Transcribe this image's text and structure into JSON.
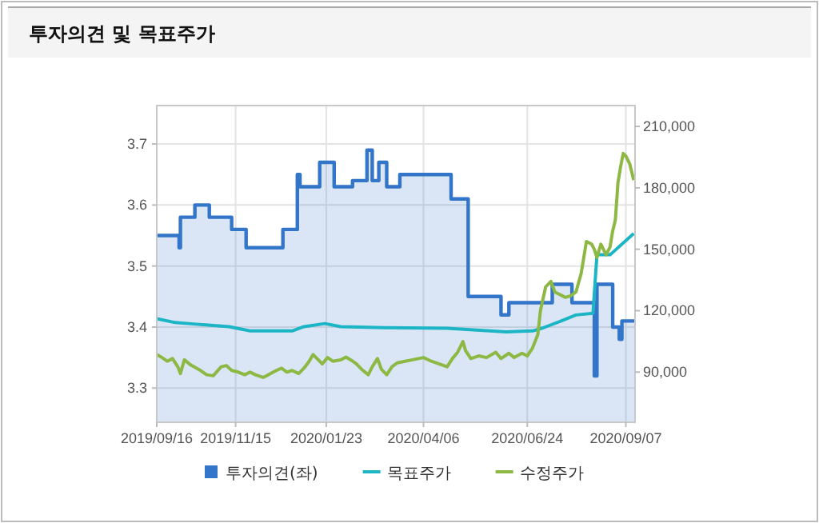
{
  "chart_data": {
    "type": "line",
    "title": "투자의견 및 목표주가",
    "xlim": [
      "2019-09-16",
      "2020-09-14"
    ],
    "xticks": [
      {
        "value": "2019-09-16",
        "label": "2019/09/16"
      },
      {
        "value": "2019-11-15",
        "label": "2019/11/15"
      },
      {
        "value": "2020-01-23",
        "label": "2020/01/23"
      },
      {
        "value": "2020-04-06",
        "label": "2020/04/06"
      },
      {
        "value": "2020-06-24",
        "label": "2020/06/24"
      },
      {
        "value": "2020-09-07",
        "label": "2020/09/07"
      }
    ],
    "ylim": [
      3.244,
      3.763
    ],
    "yticks": [
      3.3,
      3.4,
      3.5,
      3.6,
      3.7
    ],
    "y2lim": [
      65500,
      220200
    ],
    "y2ticks": [
      {
        "value": 90000,
        "label": "90,000"
      },
      {
        "value": 120000,
        "label": "120,000"
      },
      {
        "value": 150000,
        "label": "150,000"
      },
      {
        "value": 180000,
        "label": "180,000"
      },
      {
        "value": 210000,
        "label": "210,000"
      }
    ],
    "grid": true,
    "legend": "bottom",
    "series": [
      {
        "name": "투자의견(좌)",
        "type": "area",
        "line_style": "solid",
        "color": "#3375c8",
        "x": [
          "2019-09-16",
          "2019-10-03",
          "2019-10-03",
          "2019-10-04",
          "2019-10-04",
          "2019-10-15",
          "2019-10-15",
          "2019-10-26",
          "2019-10-26",
          "2019-11-12",
          "2019-11-12",
          "2019-11-23",
          "2019-11-23",
          "2019-12-21",
          "2019-12-21",
          "2020-01-01",
          "2020-01-01",
          "2020-01-03",
          "2020-01-03",
          "2020-01-18",
          "2020-01-18",
          "2020-01-29",
          "2020-01-29",
          "2020-02-12",
          "2020-02-12",
          "2020-02-23",
          "2020-02-23",
          "2020-02-27",
          "2020-02-27",
          "2020-03-03",
          "2020-03-03",
          "2020-03-09",
          "2020-03-09",
          "2020-03-19",
          "2020-03-19",
          "2020-04-27",
          "2020-04-27",
          "2020-05-10",
          "2020-05-10",
          "2020-06-04",
          "2020-06-04",
          "2020-06-10",
          "2020-06-10",
          "2020-07-13",
          "2020-07-13",
          "2020-07-28",
          "2020-07-28",
          "2020-08-14",
          "2020-08-14",
          "2020-08-16",
          "2020-08-16",
          "2020-08-28",
          "2020-08-28",
          "2020-09-02",
          "2020-09-02",
          "2020-09-04",
          "2020-09-04",
          "2020-09-14"
        ],
        "values": [
          3.55,
          3.55,
          3.53,
          3.53,
          3.58,
          3.58,
          3.6,
          3.6,
          3.58,
          3.58,
          3.56,
          3.56,
          3.53,
          3.53,
          3.56,
          3.56,
          3.65,
          3.65,
          3.63,
          3.63,
          3.67,
          3.67,
          3.63,
          3.63,
          3.64,
          3.64,
          3.69,
          3.69,
          3.64,
          3.64,
          3.67,
          3.67,
          3.63,
          3.63,
          3.65,
          3.65,
          3.61,
          3.61,
          3.45,
          3.45,
          3.42,
          3.42,
          3.44,
          3.44,
          3.47,
          3.47,
          3.44,
          3.44,
          3.32,
          3.32,
          3.47,
          3.47,
          3.4,
          3.4,
          3.38,
          3.38,
          3.41,
          3.41
        ]
      },
      {
        "name": "목표주가",
        "axis": "y2",
        "color": "#1bb5c5",
        "x": [
          "2019-09-16",
          "2019-09-30",
          "2019-10-14",
          "2019-11-10",
          "2019-11-26",
          "2019-12-28",
          "2020-01-06",
          "2020-01-22",
          "2020-02-03",
          "2020-03-07",
          "2020-04-24",
          "2020-06-08",
          "2020-06-28",
          "2020-07-06",
          "2020-07-19",
          "2020-07-31",
          "2020-08-13",
          "2020-08-16",
          "2020-08-26",
          "2020-09-13"
        ],
        "values": [
          116100,
          114200,
          113500,
          112200,
          110100,
          110100,
          112200,
          113700,
          112200,
          111700,
          111400,
          109600,
          110100,
          111600,
          114800,
          117900,
          118700,
          147300,
          147300,
          157700
        ]
      },
      {
        "name": "수정주가",
        "axis": "y2",
        "color": "#8cb843",
        "x": [
          "2019-09-16",
          "2019-09-20",
          "2019-09-24",
          "2019-09-28",
          "2019-10-02",
          "2019-10-04",
          "2019-10-07",
          "2019-10-12",
          "2019-10-18",
          "2019-10-24",
          "2019-10-29",
          "2019-11-04",
          "2019-11-08",
          "2019-11-12",
          "2019-11-17",
          "2019-11-22",
          "2019-11-26",
          "2019-11-30",
          "2019-12-06",
          "2019-12-10",
          "2019-12-16",
          "2019-12-20",
          "2019-12-24",
          "2019-12-28",
          "2020-01-02",
          "2020-01-06",
          "2020-01-10",
          "2020-01-13",
          "2020-01-16",
          "2020-01-20",
          "2020-01-24",
          "2020-01-28",
          "2020-02-03",
          "2020-02-07",
          "2020-02-11",
          "2020-02-15",
          "2020-02-19",
          "2020-02-24",
          "2020-02-27",
          "2020-03-02",
          "2020-03-05",
          "2020-03-09",
          "2020-03-13",
          "2020-03-17",
          "2020-03-23",
          "2020-04-06",
          "2020-04-12",
          "2020-04-18",
          "2020-04-24",
          "2020-04-28",
          "2020-05-02",
          "2020-05-06",
          "2020-05-08",
          "2020-05-12",
          "2020-05-18",
          "2020-05-24",
          "2020-05-31",
          "2020-06-04",
          "2020-06-10",
          "2020-06-14",
          "2020-06-20",
          "2020-06-24",
          "2020-06-28",
          "2020-07-02",
          "2020-07-04",
          "2020-07-08",
          "2020-07-12",
          "2020-07-15",
          "2020-07-19",
          "2020-07-23",
          "2020-07-27",
          "2020-07-31",
          "2020-08-04",
          "2020-08-08",
          "2020-08-12",
          "2020-08-14",
          "2020-08-16",
          "2020-08-19",
          "2020-08-23",
          "2020-08-26",
          "2020-08-28",
          "2020-08-30",
          "2020-09-01",
          "2020-09-03",
          "2020-09-05",
          "2020-09-07",
          "2020-09-10",
          "2020-09-13"
        ],
        "values": [
          98600,
          97100,
          95300,
          96600,
          92600,
          89300,
          96000,
          93400,
          91300,
          88700,
          88200,
          92600,
          93200,
          90800,
          90000,
          88700,
          90000,
          88700,
          87400,
          88700,
          90800,
          91900,
          90000,
          90800,
          89300,
          91900,
          95300,
          98600,
          96600,
          94000,
          97100,
          95300,
          96000,
          97300,
          95800,
          94000,
          91300,
          88700,
          92600,
          96600,
          91300,
          88700,
          92600,
          94500,
          95300,
          97100,
          95300,
          94000,
          92600,
          96600,
          99700,
          104900,
          100500,
          96600,
          97900,
          97100,
          99700,
          96600,
          99200,
          97100,
          99200,
          97900,
          101800,
          108300,
          120000,
          131700,
          134300,
          129100,
          127800,
          126500,
          127300,
          129100,
          138200,
          153800,
          152500,
          149900,
          146000,
          152500,
          147300,
          151200,
          159000,
          164200,
          182500,
          190300,
          196800,
          195500,
          191600,
          183800
        ]
      }
    ]
  }
}
